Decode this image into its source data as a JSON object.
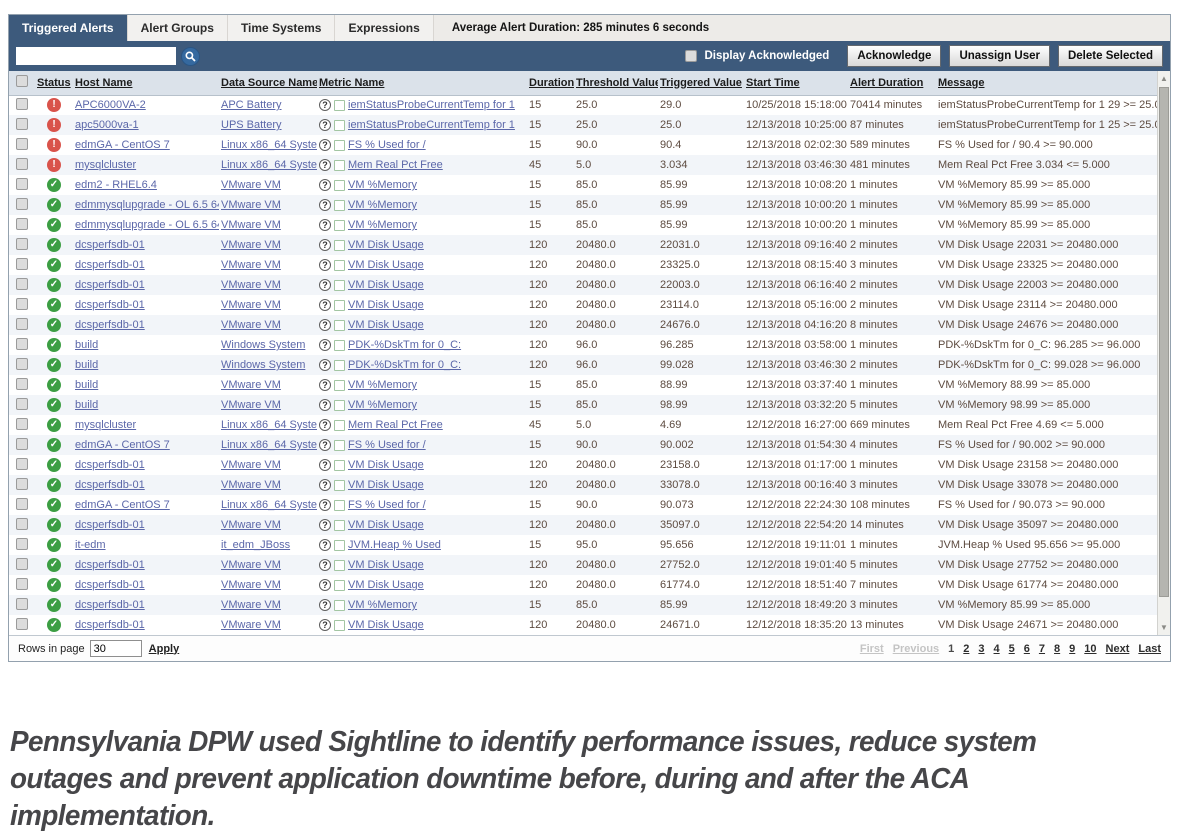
{
  "tabs": [
    {
      "label": "Triggered Alerts",
      "active": true
    },
    {
      "label": "Alert Groups",
      "active": false
    },
    {
      "label": "Time Systems",
      "active": false
    },
    {
      "label": "Expressions",
      "active": false
    }
  ],
  "summary_text": "Average Alert Duration: 285 minutes 6 seconds",
  "toolbar": {
    "search_value": "",
    "display_acknowledged_label": "Display Acknowledged",
    "acknowledge_label": "Acknowledge",
    "unassign_user_label": "Unassign User",
    "delete_selected_label": "Delete Selected"
  },
  "table": {
    "columns": [
      "Status",
      "Host Name",
      "Data Source Name",
      "Metric Name",
      "Duration",
      "Threshold Value",
      "Triggered Value",
      "Start Time",
      "Alert Duration",
      "Message"
    ],
    "rows": [
      {
        "status": "critical",
        "host": "APC6000VA-2",
        "source": "APC Battery",
        "metric": "iemStatusProbeCurrentTemp for 1",
        "duration": "15",
        "threshold": "25.0",
        "triggered": "29.0",
        "start": "10/25/2018 15:18:00",
        "alert_duration": "70414 minutes",
        "message": "iemStatusProbeCurrentTemp for 1 29 >= 25.000"
      },
      {
        "status": "critical",
        "host": "apc5000va-1",
        "source": "UPS Battery",
        "metric": "iemStatusProbeCurrentTemp for 1",
        "duration": "15",
        "threshold": "25.0",
        "triggered": "25.0",
        "start": "12/13/2018 10:25:00",
        "alert_duration": "87 minutes",
        "message": "iemStatusProbeCurrentTemp for 1 25 >= 25.000"
      },
      {
        "status": "critical",
        "host": "edmGA - CentOS 7",
        "source": "Linux x86_64 System",
        "metric": "FS % Used for /",
        "duration": "15",
        "threshold": "90.0",
        "triggered": "90.4",
        "start": "12/13/2018 02:02:30",
        "alert_duration": "589 minutes",
        "message": "FS % Used for / 90.4 >= 90.000"
      },
      {
        "status": "critical",
        "host": "mysqlcluster",
        "source": "Linux x86_64 System",
        "metric": "Mem Real Pct Free",
        "duration": "45",
        "threshold": "5.0",
        "triggered": "3.034",
        "start": "12/13/2018 03:46:30",
        "alert_duration": "481 minutes",
        "message": "Mem Real Pct Free 3.034 <= 5.000"
      },
      {
        "status": "ok",
        "host": "edm2 - RHEL6.4",
        "source": "VMware VM",
        "metric": "VM %Memory",
        "duration": "15",
        "threshold": "85.0",
        "triggered": "85.99",
        "start": "12/13/2018 10:08:20",
        "alert_duration": "1 minutes",
        "message": "VM %Memory 85.99 >= 85.000"
      },
      {
        "status": "ok",
        "host": "edmmysqlupgrade - OL 6.5 64-bit",
        "source": "VMware VM",
        "metric": "VM %Memory",
        "duration": "15",
        "threshold": "85.0",
        "triggered": "85.99",
        "start": "12/13/2018 10:00:20",
        "alert_duration": "1 minutes",
        "message": "VM %Memory 85.99 >= 85.000"
      },
      {
        "status": "ok",
        "host": "edmmysqlupgrade - OL 6.5 64-bit",
        "source": "VMware VM",
        "metric": "VM %Memory",
        "duration": "15",
        "threshold": "85.0",
        "triggered": "85.99",
        "start": "12/13/2018 10:00:20",
        "alert_duration": "1 minutes",
        "message": "VM %Memory 85.99 >= 85.000"
      },
      {
        "status": "ok",
        "host": "dcsperfsdb-01",
        "source": "VMware VM",
        "metric": "VM Disk Usage",
        "duration": "120",
        "threshold": "20480.0",
        "triggered": "22031.0",
        "start": "12/13/2018 09:16:40",
        "alert_duration": "2 minutes",
        "message": "VM Disk Usage 22031 >= 20480.000"
      },
      {
        "status": "ok",
        "host": "dcsperfsdb-01",
        "source": "VMware VM",
        "metric": "VM Disk Usage",
        "duration": "120",
        "threshold": "20480.0",
        "triggered": "23325.0",
        "start": "12/13/2018 08:15:40",
        "alert_duration": "3 minutes",
        "message": "VM Disk Usage 23325 >= 20480.000"
      },
      {
        "status": "ok",
        "host": "dcsperfsdb-01",
        "source": "VMware VM",
        "metric": "VM Disk Usage",
        "duration": "120",
        "threshold": "20480.0",
        "triggered": "22003.0",
        "start": "12/13/2018 06:16:40",
        "alert_duration": "2 minutes",
        "message": "VM Disk Usage 22003 >= 20480.000"
      },
      {
        "status": "ok",
        "host": "dcsperfsdb-01",
        "source": "VMware VM",
        "metric": "VM Disk Usage",
        "duration": "120",
        "threshold": "20480.0",
        "triggered": "23114.0",
        "start": "12/13/2018 05:16:00",
        "alert_duration": "2 minutes",
        "message": "VM Disk Usage 23114 >= 20480.000"
      },
      {
        "status": "ok",
        "host": "dcsperfsdb-01",
        "source": "VMware VM",
        "metric": "VM Disk Usage",
        "duration": "120",
        "threshold": "20480.0",
        "triggered": "24676.0",
        "start": "12/13/2018 04:16:20",
        "alert_duration": "8 minutes",
        "message": "VM Disk Usage 24676 >= 20480.000"
      },
      {
        "status": "ok",
        "host": "build",
        "source": "Windows System",
        "metric": "PDK-%DskTm for 0_C:",
        "duration": "120",
        "threshold": "96.0",
        "triggered": "96.285",
        "start": "12/13/2018 03:58:00",
        "alert_duration": "1 minutes",
        "message": "PDK-%DskTm for 0_C: 96.285 >= 96.000"
      },
      {
        "status": "ok",
        "host": "build",
        "source": "Windows System",
        "metric": "PDK-%DskTm for 0_C:",
        "duration": "120",
        "threshold": "96.0",
        "triggered": "99.028",
        "start": "12/13/2018 03:46:30",
        "alert_duration": "2 minutes",
        "message": "PDK-%DskTm for 0_C: 99.028 >= 96.000"
      },
      {
        "status": "ok",
        "host": "build",
        "source": "VMware VM",
        "metric": "VM %Memory",
        "duration": "15",
        "threshold": "85.0",
        "triggered": "88.99",
        "start": "12/13/2018 03:37:40",
        "alert_duration": "1 minutes",
        "message": "VM %Memory 88.99 >= 85.000"
      },
      {
        "status": "ok",
        "host": "build",
        "source": "VMware VM",
        "metric": "VM %Memory",
        "duration": "15",
        "threshold": "85.0",
        "triggered": "98.99",
        "start": "12/13/2018 03:32:20",
        "alert_duration": "5 minutes",
        "message": "VM %Memory 98.99 >= 85.000"
      },
      {
        "status": "ok",
        "host": "mysqlcluster",
        "source": "Linux x86_64 System",
        "metric": "Mem Real Pct Free",
        "duration": "45",
        "threshold": "5.0",
        "triggered": "4.69",
        "start": "12/12/2018 16:27:00",
        "alert_duration": "669 minutes",
        "message": "Mem Real Pct Free 4.69 <= 5.000"
      },
      {
        "status": "ok",
        "host": "edmGA - CentOS 7",
        "source": "Linux x86_64 System",
        "metric": "FS % Used for /",
        "duration": "15",
        "threshold": "90.0",
        "triggered": "90.002",
        "start": "12/13/2018 01:54:30",
        "alert_duration": "4 minutes",
        "message": "FS % Used for / 90.002 >= 90.000"
      },
      {
        "status": "ok",
        "host": "dcsperfsdb-01",
        "source": "VMware VM",
        "metric": "VM Disk Usage",
        "duration": "120",
        "threshold": "20480.0",
        "triggered": "23158.0",
        "start": "12/13/2018 01:17:00",
        "alert_duration": "1 minutes",
        "message": "VM Disk Usage 23158 >= 20480.000"
      },
      {
        "status": "ok",
        "host": "dcsperfsdb-01",
        "source": "VMware VM",
        "metric": "VM Disk Usage",
        "duration": "120",
        "threshold": "20480.0",
        "triggered": "33078.0",
        "start": "12/13/2018 00:16:40",
        "alert_duration": "3 minutes",
        "message": "VM Disk Usage 33078 >= 20480.000"
      },
      {
        "status": "ok",
        "host": "edmGA - CentOS 7",
        "source": "Linux x86_64 System",
        "metric": "FS % Used for /",
        "duration": "15",
        "threshold": "90.0",
        "triggered": "90.073",
        "start": "12/12/2018 22:24:30",
        "alert_duration": "108 minutes",
        "message": "FS % Used for / 90.073 >= 90.000"
      },
      {
        "status": "ok",
        "host": "dcsperfsdb-01",
        "source": "VMware VM",
        "metric": "VM Disk Usage",
        "duration": "120",
        "threshold": "20480.0",
        "triggered": "35097.0",
        "start": "12/12/2018 22:54:20",
        "alert_duration": "14 minutes",
        "message": "VM Disk Usage 35097 >= 20480.000"
      },
      {
        "status": "ok",
        "host": "it-edm",
        "source": "it_edm_JBoss",
        "metric": "JVM.Heap % Used",
        "duration": "15",
        "threshold": "95.0",
        "triggered": "95.656",
        "start": "12/12/2018 19:11:01",
        "alert_duration": "1 minutes",
        "message": "JVM.Heap % Used 95.656 >= 95.000"
      },
      {
        "status": "ok",
        "host": "dcsperfsdb-01",
        "source": "VMware VM",
        "metric": "VM Disk Usage",
        "duration": "120",
        "threshold": "20480.0",
        "triggered": "27752.0",
        "start": "12/12/2018 19:01:40",
        "alert_duration": "5 minutes",
        "message": "VM Disk Usage 27752 >= 20480.000"
      },
      {
        "status": "ok",
        "host": "dcsperfsdb-01",
        "source": "VMware VM",
        "metric": "VM Disk Usage",
        "duration": "120",
        "threshold": "20480.0",
        "triggered": "61774.0",
        "start": "12/12/2018 18:51:40",
        "alert_duration": "7 minutes",
        "message": "VM Disk Usage 61774 >= 20480.000"
      },
      {
        "status": "ok",
        "host": "dcsperfsdb-01",
        "source": "VMware VM",
        "metric": "VM %Memory",
        "duration": "15",
        "threshold": "85.0",
        "triggered": "85.99",
        "start": "12/12/2018 18:49:20",
        "alert_duration": "3 minutes",
        "message": "VM %Memory 85.99 >= 85.000"
      },
      {
        "status": "ok",
        "host": "dcsperfsdb-01",
        "source": "VMware VM",
        "metric": "VM Disk Usage",
        "duration": "120",
        "threshold": "20480.0",
        "triggered": "24671.0",
        "start": "12/12/2018 18:35:20",
        "alert_duration": "13 minutes",
        "message": "VM Disk Usage 24671 >= 20480.000"
      }
    ]
  },
  "footer": {
    "rows_in_page_label": "Rows in page",
    "rows_in_page_value": "30",
    "apply_label": "Apply",
    "pagination": [
      {
        "label": "First",
        "state": "disabled"
      },
      {
        "label": "Previous",
        "state": "disabled"
      },
      {
        "label": "1",
        "state": "current"
      },
      {
        "label": "2",
        "state": "link"
      },
      {
        "label": "3",
        "state": "link"
      },
      {
        "label": "4",
        "state": "link"
      },
      {
        "label": "5",
        "state": "link"
      },
      {
        "label": "6",
        "state": "link"
      },
      {
        "label": "7",
        "state": "link"
      },
      {
        "label": "8",
        "state": "link"
      },
      {
        "label": "9",
        "state": "link"
      },
      {
        "label": "10",
        "state": "link"
      },
      {
        "label": "Next",
        "state": "link"
      },
      {
        "label": "Last",
        "state": "link"
      }
    ]
  },
  "caption": "Pennsylvania DPW used Sightline to identify performance issues, reduce system outages and prevent application downtime before, during and after the ACA implementation.",
  "colors": {
    "accent": "#3d5a7c",
    "critical": "#d9534b",
    "ok": "#3c9e43",
    "link": "#5b67a9"
  }
}
